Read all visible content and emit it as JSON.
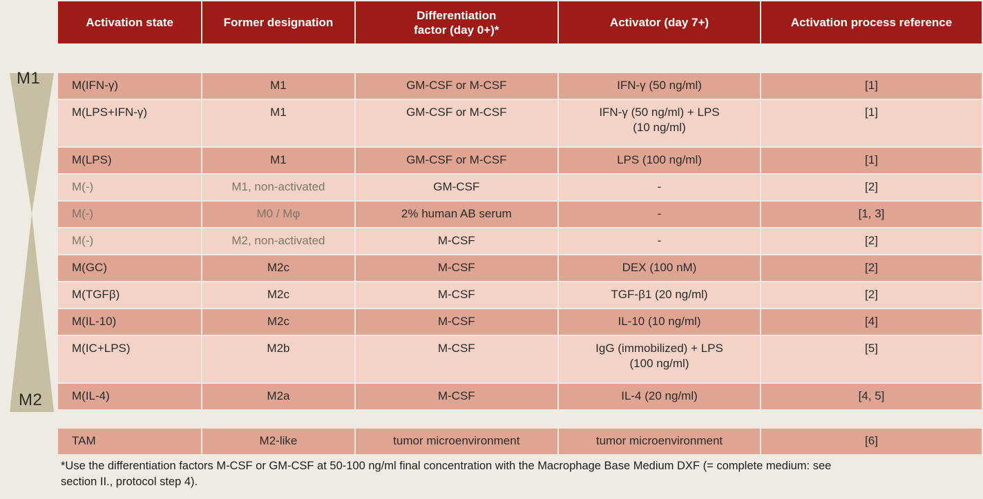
{
  "page": {
    "background_color": "#f0ebe2",
    "funnel_color": "#c6bfa4",
    "side_labels": {
      "top": "M1",
      "bottom": "M2"
    }
  },
  "table": {
    "header": {
      "bg_color": "#9e1c17",
      "text_color": "#ffffff",
      "columns": [
        "Activation state",
        "Former designation",
        "Differentiation\nfactor (day 0+)*",
        "Activator (day 7+)",
        "Activation process reference"
      ]
    },
    "row_colors": {
      "dark": "#dfa592",
      "light": "#f3d3c7",
      "text": "#2b2a27",
      "muted_text": "#7d7568"
    },
    "rows": [
      {
        "activation_state": "M(IFN-γ)",
        "former_designation": "M1",
        "differentiation_factor": "GM-CSF or M-CSF",
        "activator": "IFN-γ (50 ng/ml)",
        "reference": "[1]",
        "shade": "dark",
        "muted": false,
        "tall": false,
        "gap_before": false
      },
      {
        "activation_state": "M(LPS+IFN-γ)",
        "former_designation": "M1",
        "differentiation_factor": "GM-CSF or M-CSF",
        "activator": "IFN-γ (50 ng/ml) + LPS\n(10 ng/ml)",
        "reference": "[1]",
        "shade": "light",
        "muted": false,
        "tall": true,
        "gap_before": false
      },
      {
        "activation_state": "M(LPS)",
        "former_designation": "M1",
        "differentiation_factor": "GM-CSF or M-CSF",
        "activator": "LPS (100 ng/ml)",
        "reference": "[1]",
        "shade": "dark",
        "muted": false,
        "tall": false,
        "gap_before": false
      },
      {
        "activation_state": "M(-)",
        "former_designation": "M1, non-activated",
        "differentiation_factor": "GM-CSF",
        "activator": "-",
        "reference": "[2]",
        "shade": "light",
        "muted": true,
        "tall": false,
        "gap_before": false
      },
      {
        "activation_state": "M(-)",
        "former_designation": "M0 / Mφ",
        "differentiation_factor": "2% human AB serum",
        "activator": "-",
        "reference": "[1, 3]",
        "shade": "dark",
        "muted": true,
        "tall": false,
        "gap_before": false
      },
      {
        "activation_state": "M(-)",
        "former_designation": "M2, non-activated",
        "differentiation_factor": "M-CSF",
        "activator": "-",
        "reference": "[2]",
        "shade": "light",
        "muted": true,
        "tall": false,
        "gap_before": false
      },
      {
        "activation_state": "M(GC)",
        "former_designation": "M2c",
        "differentiation_factor": "M-CSF",
        "activator": "DEX (100 nM)",
        "reference": "[2]",
        "shade": "dark",
        "muted": false,
        "tall": false,
        "gap_before": false
      },
      {
        "activation_state": "M(TGFβ)",
        "former_designation": "M2c",
        "differentiation_factor": "M-CSF",
        "activator": "TGF-β1 (20 ng/ml)",
        "reference": "[2]",
        "shade": "light",
        "muted": false,
        "tall": false,
        "gap_before": false
      },
      {
        "activation_state": "M(IL-10)",
        "former_designation": "M2c",
        "differentiation_factor": "M-CSF",
        "activator": "IL-10 (10 ng/ml)",
        "reference": "[4]",
        "shade": "dark",
        "muted": false,
        "tall": false,
        "gap_before": false
      },
      {
        "activation_state": "M(IC+LPS)",
        "former_designation": "M2b",
        "differentiation_factor": "M-CSF",
        "activator": "IgG (immobilized) + LPS\n(100 ng/ml)",
        "reference": "[5]",
        "shade": "light",
        "muted": false,
        "tall": true,
        "gap_before": false
      },
      {
        "activation_state": "M(IL-4)",
        "former_designation": "M2a",
        "differentiation_factor": "M-CSF",
        "activator": "IL-4 (20 ng/ml)",
        "reference": "[4, 5]",
        "shade": "dark",
        "muted": false,
        "tall": false,
        "gap_before": false
      },
      {
        "activation_state": "TAM",
        "former_designation": "M2-like",
        "differentiation_factor": "tumor microenvironment",
        "activator": "tumor microenvironment",
        "reference": "[6]",
        "shade": "dark",
        "muted": false,
        "tall": false,
        "gap_before": true
      }
    ]
  },
  "footnote": "*Use the differentiation factors M-CSF or GM-CSF at 50-100 ng/ml final concentration with the Macrophage Base Medium DXF (= complete medium: see\nsection II., protocol step 4)."
}
